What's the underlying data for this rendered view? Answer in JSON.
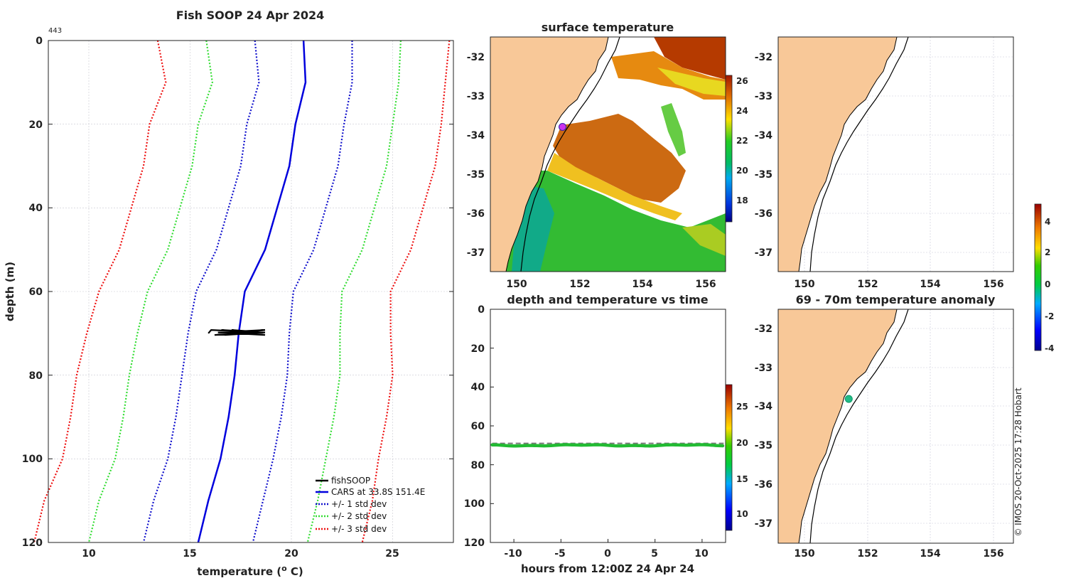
{
  "profile": {
    "title": "Fish SOOP 24 Apr 2024",
    "id_label": "443",
    "xlabel": "temperature (",
    "xlabel_sup": "o",
    "xlabel_tail": " C)",
    "ylabel": "depth (m)",
    "xlim": [
      8,
      28
    ],
    "ylim": [
      0,
      120
    ],
    "xticks": [
      "10",
      "15",
      "20",
      "25"
    ],
    "yticks": [
      "0",
      "20",
      "40",
      "60",
      "80",
      "100",
      "120"
    ],
    "legend": [
      "fishSOOP",
      "CARS at 33.8S 151.4E",
      "+/- 1 std dev",
      "+/- 2 std dev",
      "+/- 3 std dev"
    ],
    "colors": {
      "obs": "#000000",
      "cars": "#0000dd",
      "sd1": "#1010cc",
      "sd2": "#33dd33",
      "sd3": "#ee1111"
    },
    "cars_depths": [
      0,
      10,
      20,
      30,
      40,
      50,
      60,
      70,
      80,
      90,
      100,
      110,
      120
    ],
    "cars_mean": [
      20.6,
      20.7,
      20.2,
      19.9,
      19.3,
      18.7,
      17.7,
      17.4,
      17.2,
      16.9,
      16.5,
      15.9,
      15.4
    ],
    "cars_sd": [
      2.4,
      2.3,
      2.4,
      2.4,
      2.4,
      2.4,
      2.4,
      2.5,
      2.6,
      2.6,
      2.6,
      2.7,
      2.7
    ],
    "obs": {
      "depth": 70,
      "temp_min": 15.9,
      "temp_max": 18.7
    }
  },
  "sst_map": {
    "title": "surface temperature",
    "xticks": [
      "150",
      "152",
      "154",
      "156"
    ],
    "yticks": [
      "-32",
      "-33",
      "-34",
      "-35",
      "-36",
      "-37"
    ],
    "lon_range": [
      149.1,
      156.6
    ],
    "lat_range": [
      -37.5,
      -31.5
    ],
    "station": {
      "lon": 151.4,
      "lat": -33.8,
      "color": "#cc33ee"
    },
    "colorbar": {
      "ticks": [
        "18",
        "20",
        "22",
        "24",
        "26"
      ],
      "range": [
        16.5,
        26.5
      ]
    }
  },
  "anom_top_map": {
    "xticks": [
      "150",
      "152",
      "154",
      "156"
    ],
    "yticks": [
      "-32",
      "-33",
      "-34",
      "-35",
      "-36",
      "-37"
    ]
  },
  "anom_colorbar": {
    "ticks": [
      "4",
      "2",
      "0",
      "-2",
      "-4"
    ],
    "range": [
      -4.2,
      5.2
    ]
  },
  "timeseries": {
    "title": "depth and temperature vs time",
    "xlabel": "hours from 12:00Z 24 Apr 24",
    "xticks": [
      "-10",
      "-5",
      "0",
      "5",
      "10"
    ],
    "yticks": [
      "0",
      "20",
      "40",
      "60",
      "80",
      "100",
      "120"
    ],
    "xlim": [
      -12.5,
      12.5
    ],
    "ylim": [
      0,
      120
    ],
    "reference_depth": 69,
    "depth": 70,
    "temperature": 18.5,
    "colorbar": {
      "ticks": [
        "25",
        "20",
        "15",
        "10"
      ],
      "range": [
        7.5,
        28.5
      ]
    }
  },
  "anom_map": {
    "title": "69 - 70m temperature anomaly",
    "xticks": [
      "150",
      "152",
      "154",
      "156"
    ],
    "yticks": [
      "-32",
      "-33",
      "-34",
      "-35",
      "-36",
      "-37"
    ],
    "station": {
      "lon": 151.35,
      "lat": -33.8,
      "color": "#22bb88"
    }
  },
  "credit": "© IMOS 20-Oct-2025 17:28 Hobart",
  "land_color": "#f8c898"
}
